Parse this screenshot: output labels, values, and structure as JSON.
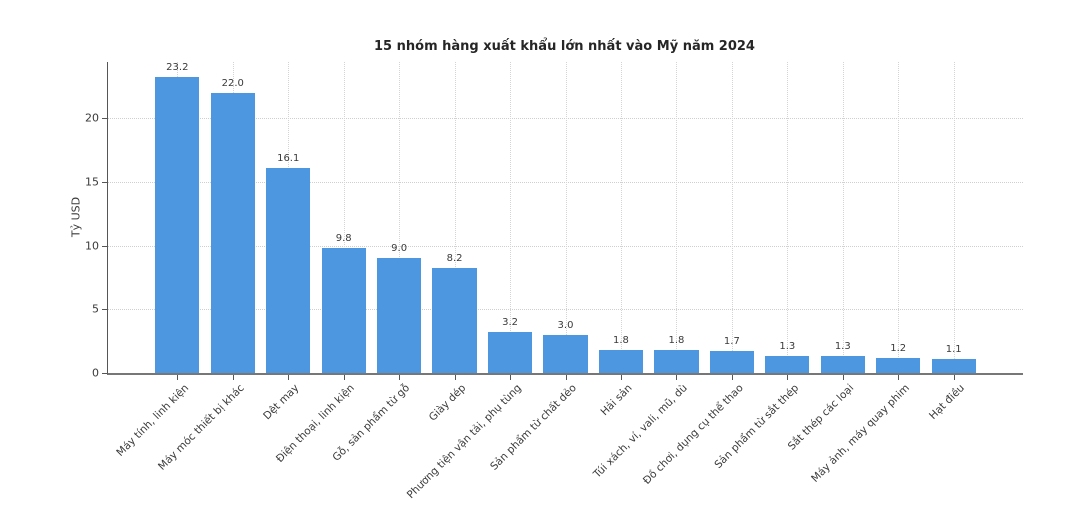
{
  "page": {
    "background": "#ffffff"
  },
  "chart_data": {
    "type": "bar",
    "title": "15 nhóm hàng xuất khẩu lớn nhất vào Mỹ năm 2024",
    "xlabel": "",
    "ylabel": "Tỷ USD",
    "categories": [
      "Máy tính, linh kiện",
      "Máy móc thiết bị khác",
      "Dệt may",
      "Điện thoại, linh kiện",
      "Gỗ, sản phẩm từ gỗ",
      "Giày dép",
      "Phương tiện vận tải, phụ tùng",
      "Sản phẩm từ chất dẻo",
      "Hải sản",
      "Túi xách, ví, vali, mũ, dù",
      "Đồ chơi, dụng cụ thể thao",
      "Sản phẩm từ sắt thép",
      "Sắt thép các loại",
      "Máy ảnh, máy quay phim",
      "Hạt điều"
    ],
    "values": [
      23.2,
      22.0,
      16.1,
      9.8,
      9.0,
      8.2,
      3.2,
      3.0,
      1.8,
      1.8,
      1.7,
      1.3,
      1.3,
      1.2,
      1.1
    ],
    "yticks": [
      0,
      5,
      10,
      15,
      20
    ],
    "ylim": [
      0,
      24.4
    ],
    "bar_color": "#4d96e0",
    "grid": "dotted horizontal and vertical",
    "legend": "none",
    "value_label_decimals": 1,
    "x_label_rotation_deg": 45
  }
}
